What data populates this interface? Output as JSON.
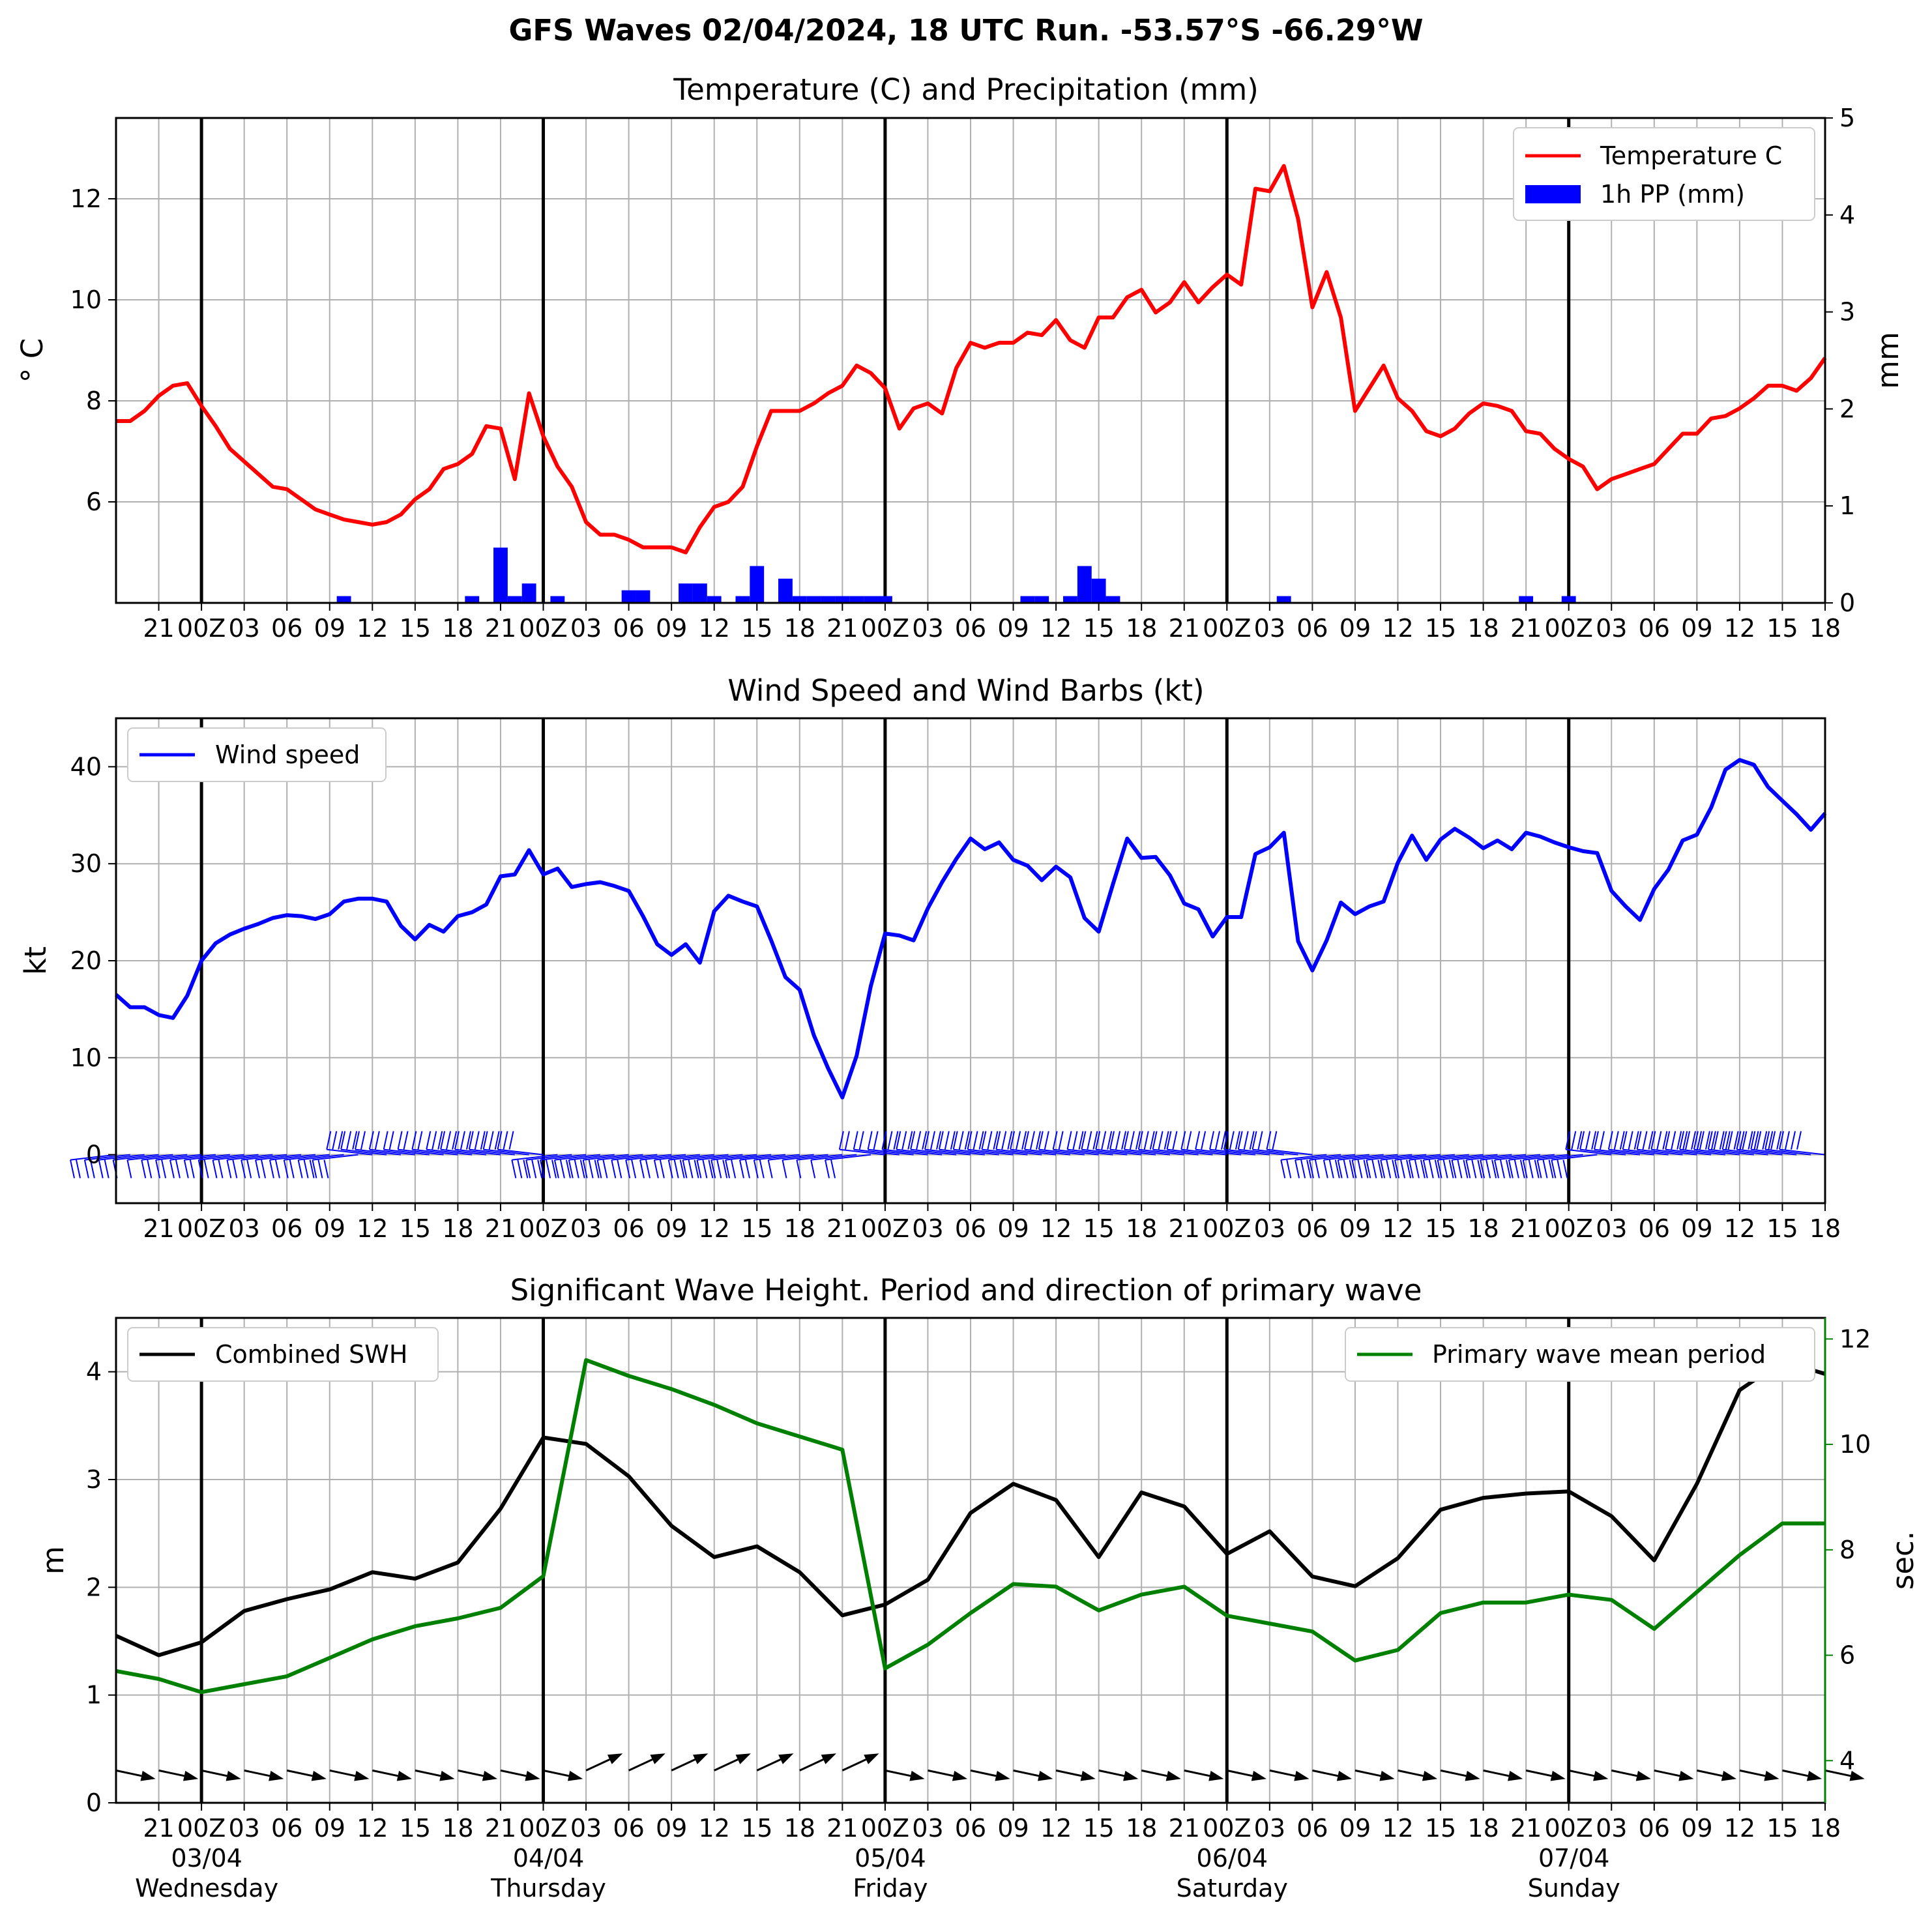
{
  "title": "GFS Waves 02/04/2024, 18 UTC Run. -53.57°S -66.29°W",
  "time_axis": {
    "hours_tick_labels": [
      "21",
      "00Z",
      "03",
      "06",
      "09",
      "12",
      "15",
      "18",
      "21",
      "00Z",
      "03",
      "06",
      "09",
      "12",
      "15",
      "18",
      "21",
      "00Z",
      "03",
      "06",
      "09",
      "12",
      "15",
      "18",
      "21",
      "00Z",
      "03",
      "06",
      "09",
      "12",
      "15",
      "18",
      "21",
      "00Z",
      "03",
      "06",
      "09",
      "12",
      "15",
      "18"
    ],
    "date_labels": [
      {
        "date": "03/04",
        "day": "Wednesday"
      },
      {
        "date": "04/04",
        "day": "Thursday"
      },
      {
        "date": "05/04",
        "day": "Friday"
      },
      {
        "date": "06/04",
        "day": "Saturday"
      },
      {
        "date": "07/04",
        "day": "Sunday"
      }
    ]
  },
  "chart_data": [
    {
      "type": "line",
      "title": "Temperature (C) and Precipitation (mm)",
      "ylabel": "$^\\circ$C",
      "ylabel_display": "° C",
      "ylabel_right": "mm",
      "x_range_hours": [
        18,
        138
      ],
      "ylim": [
        4,
        13.6
      ],
      "ylim_right": [
        0,
        5
      ],
      "yticks": [
        6,
        8,
        10,
        12
      ],
      "yticks_right": [
        0,
        1,
        2,
        3,
        4,
        5
      ],
      "legend_position": "upper-right",
      "series": [
        {
          "name": "Temperature C",
          "color": "#ff0000",
          "x_hours": [
            18,
            19,
            20,
            21,
            22,
            23,
            24,
            25,
            26,
            27,
            28,
            29,
            30,
            31,
            32,
            33,
            34,
            35,
            36,
            37,
            38,
            39,
            40,
            41,
            42,
            43,
            44,
            45,
            46,
            47,
            48,
            49,
            50,
            51,
            52,
            53,
            54,
            55,
            56,
            57,
            58,
            59,
            60,
            61,
            62,
            63,
            64,
            65,
            66,
            67,
            68,
            69,
            70,
            71,
            72,
            73,
            74,
            75,
            76,
            77,
            78,
            79,
            80,
            81,
            82,
            83,
            84,
            85,
            86,
            87,
            88,
            89,
            90,
            91,
            92,
            93,
            94,
            95,
            96,
            97,
            98,
            99,
            100,
            101,
            102,
            103,
            104,
            105,
            106,
            107,
            108,
            109,
            110,
            111,
            112,
            113,
            114,
            115,
            116,
            117,
            118,
            119,
            120,
            121,
            122,
            123,
            124,
            125,
            126,
            127,
            128,
            129,
            130,
            131,
            132,
            133,
            134,
            135,
            136,
            137,
            138
          ],
          "values": [
            7.6,
            7.6,
            7.8,
            8.1,
            8.3,
            8.35,
            7.9,
            7.5,
            7.05,
            6.8,
            6.55,
            6.3,
            6.25,
            6.05,
            5.85,
            5.75,
            5.65,
            5.6,
            5.55,
            5.6,
            5.75,
            6.05,
            6.25,
            6.65,
            6.75,
            6.95,
            7.5,
            7.45,
            6.45,
            8.15,
            7.3,
            6.7,
            6.3,
            5.6,
            5.35,
            5.35,
            5.25,
            5.1,
            5.1,
            5.1,
            5.0,
            5.5,
            5.9,
            6.0,
            6.3,
            7.1,
            7.8,
            7.8,
            7.8,
            7.95,
            8.15,
            8.3,
            8.7,
            8.55,
            8.25,
            7.45,
            7.85,
            7.95,
            7.75,
            8.65,
            9.15,
            9.05,
            9.15,
            9.15,
            9.35,
            9.3,
            9.6,
            9.2,
            9.05,
            9.65,
            9.65,
            10.05,
            10.2,
            9.75,
            9.95,
            10.35,
            9.95,
            10.25,
            10.5,
            10.3,
            12.2,
            12.15,
            12.65,
            11.6,
            9.85,
            10.55,
            9.65,
            7.8,
            8.25,
            8.7,
            8.05,
            7.8,
            7.4,
            7.3,
            7.45,
            7.75,
            7.95,
            7.9,
            7.8,
            7.4,
            7.35,
            7.05,
            6.85,
            6.7,
            6.25,
            6.45,
            6.55,
            6.65,
            6.75,
            7.05,
            7.35,
            7.35,
            7.65,
            7.7,
            7.85,
            8.05,
            8.3,
            8.3,
            8.2,
            8.45,
            8.85
          ]
        },
        {
          "name": "1h PP (mm)",
          "type": "bar",
          "axis": "right",
          "color": "#0000ff",
          "x_hours": [
            34,
            43,
            45,
            46,
            47,
            49,
            54,
            55,
            58,
            59,
            60,
            62,
            63,
            65,
            66,
            67,
            68,
            69,
            70,
            71,
            72,
            82,
            83,
            85,
            86,
            87,
            88,
            100,
            117,
            120
          ],
          "values": [
            0.07,
            0.07,
            0.57,
            0.07,
            0.2,
            0.07,
            0.13,
            0.13,
            0.2,
            0.2,
            0.07,
            0.07,
            0.38,
            0.25,
            0.07,
            0.07,
            0.07,
            0.07,
            0.07,
            0.07,
            0.07,
            0.07,
            0.07,
            0.07,
            0.38,
            0.25,
            0.07,
            0.07,
            0.07,
            0.07
          ]
        }
      ]
    },
    {
      "type": "line",
      "title": "Wind Speed and Wind Barbs (kt)",
      "ylabel": "kt",
      "x_range_hours": [
        18,
        138
      ],
      "ylim": [
        -5,
        45
      ],
      "yticks": [
        0,
        10,
        20,
        30,
        40
      ],
      "legend_position": "upper-left",
      "series": [
        {
          "name": "Wind speed",
          "color": "#0000ff",
          "x_hours": [
            18,
            19,
            20,
            21,
            22,
            23,
            24,
            25,
            26,
            27,
            28,
            29,
            30,
            31,
            32,
            33,
            34,
            35,
            36,
            37,
            38,
            39,
            40,
            41,
            42,
            43,
            44,
            45,
            46,
            47,
            48,
            49,
            50,
            51,
            52,
            53,
            54,
            55,
            56,
            57,
            58,
            59,
            60,
            61,
            62,
            63,
            64,
            65,
            66,
            67,
            68,
            69,
            70,
            71,
            72,
            73,
            74,
            75,
            76,
            77,
            78,
            79,
            80,
            81,
            82,
            83,
            84,
            85,
            86,
            87,
            88,
            89,
            90,
            91,
            92,
            93,
            94,
            95,
            96,
            97,
            98,
            99,
            100,
            101,
            102,
            103,
            104,
            105,
            106,
            107,
            108,
            109,
            110,
            111,
            112,
            113,
            114,
            115,
            116,
            117,
            118,
            119,
            120,
            121,
            122,
            123,
            124,
            125,
            126,
            127,
            128,
            129,
            130,
            131,
            132,
            133,
            134,
            135,
            136,
            137,
            138
          ],
          "values": [
            16.5,
            15.2,
            15.2,
            14.4,
            14.1,
            16.4,
            20.0,
            21.8,
            22.7,
            23.3,
            23.8,
            24.4,
            24.7,
            24.6,
            24.3,
            24.8,
            26.1,
            26.4,
            26.4,
            26.1,
            23.6,
            22.2,
            23.7,
            23.0,
            24.6,
            25.0,
            25.8,
            28.7,
            28.9,
            31.4,
            28.9,
            29.5,
            27.6,
            27.9,
            28.1,
            27.7,
            27.2,
            24.6,
            21.7,
            20.6,
            21.7,
            19.8,
            25.1,
            26.7,
            26.1,
            25.6,
            22.1,
            18.3,
            17.0,
            12.3,
            8.9,
            5.9,
            10.2,
            17.4,
            22.8,
            22.6,
            22.1,
            25.4,
            28.1,
            30.5,
            32.6,
            31.5,
            32.2,
            30.4,
            29.8,
            28.3,
            29.7,
            28.6,
            24.4,
            23.0,
            27.9,
            32.6,
            30.6,
            30.7,
            28.8,
            25.9,
            25.3,
            22.5,
            24.5,
            24.5,
            31.0,
            31.7,
            33.2,
            22.0,
            19.0,
            22.1,
            26.0,
            24.8,
            25.6,
            26.1,
            30.1,
            32.9,
            30.4,
            32.5,
            33.6,
            32.7,
            31.6,
            32.4,
            31.5,
            33.2,
            32.8,
            32.2,
            31.7,
            31.3,
            31.1,
            27.2,
            25.6,
            24.2,
            27.4,
            29.4,
            32.4,
            33.0,
            35.8,
            39.7,
            40.7,
            40.2,
            37.9,
            36.5,
            35.1,
            33.5,
            35.2
          ]
        }
      ],
      "wind_barbs_u_kt_approx": "barbs along y=0 at hourly steps; westerly through northwesterly flow",
      "wind_barbs_color": "#0000ff"
    },
    {
      "type": "line",
      "title": "Significant Wave Height. Period and direction of primary wave",
      "ylabel": "m",
      "ylabel_right": "sec.",
      "x_range_hours": [
        18,
        138
      ],
      "ylim": [
        0,
        4.5
      ],
      "ylim_right": [
        3.2,
        12.4
      ],
      "yticks": [
        0,
        1,
        2,
        3,
        4
      ],
      "yticks_right": [
        4,
        6,
        8,
        10,
        12
      ],
      "series": [
        {
          "name": "Combined SWH",
          "color": "#000000",
          "legend_position": "upper-left",
          "x_hours": [
            18,
            21,
            24,
            27,
            30,
            33,
            36,
            39,
            42,
            45,
            48,
            51,
            54,
            57,
            60,
            63,
            66,
            69,
            72,
            75,
            78,
            81,
            84,
            87,
            90,
            93,
            96,
            99,
            102,
            105,
            108,
            111,
            114,
            117,
            120,
            123,
            126,
            129,
            132,
            135,
            138
          ],
          "values": [
            1.55,
            1.37,
            1.49,
            1.78,
            1.89,
            1.98,
            2.14,
            2.08,
            2.23,
            2.73,
            3.39,
            3.33,
            3.03,
            2.57,
            2.28,
            2.38,
            2.14,
            1.74,
            1.84,
            2.07,
            2.69,
            2.96,
            2.81,
            2.28,
            2.88,
            2.75,
            2.31,
            2.52,
            2.1,
            2.01,
            2.27,
            2.72,
            2.83,
            2.87,
            2.89,
            2.66,
            2.25,
            2.96,
            3.83,
            4.1,
            3.98
          ]
        },
        {
          "name": "Primary wave mean period",
          "color": "#008000",
          "axis": "right",
          "legend_position": "upper-right",
          "x_hours": [
            18,
            21,
            24,
            27,
            30,
            33,
            36,
            39,
            42,
            45,
            48,
            51,
            54,
            57,
            60,
            63,
            66,
            69,
            72,
            75,
            78,
            81,
            84,
            87,
            90,
            93,
            96,
            99,
            102,
            105,
            108,
            111,
            114,
            117,
            120,
            123,
            126,
            129,
            132,
            135,
            138
          ],
          "values": [
            5.7,
            5.55,
            5.3,
            5.45,
            5.6,
            5.95,
            6.3,
            6.55,
            6.7,
            6.9,
            7.5,
            11.6,
            11.3,
            11.05,
            10.75,
            10.4,
            10.15,
            9.9,
            5.75,
            6.2,
            6.8,
            7.35,
            7.3,
            6.85,
            7.15,
            7.3,
            6.75,
            6.6,
            6.45,
            5.9,
            6.1,
            6.8,
            7.0,
            7.0,
            7.15,
            7.05,
            6.5,
            7.2,
            7.9,
            8.5,
            8.5
          ]
        }
      ],
      "wave_direction_arrows_color": "#000000"
    }
  ]
}
